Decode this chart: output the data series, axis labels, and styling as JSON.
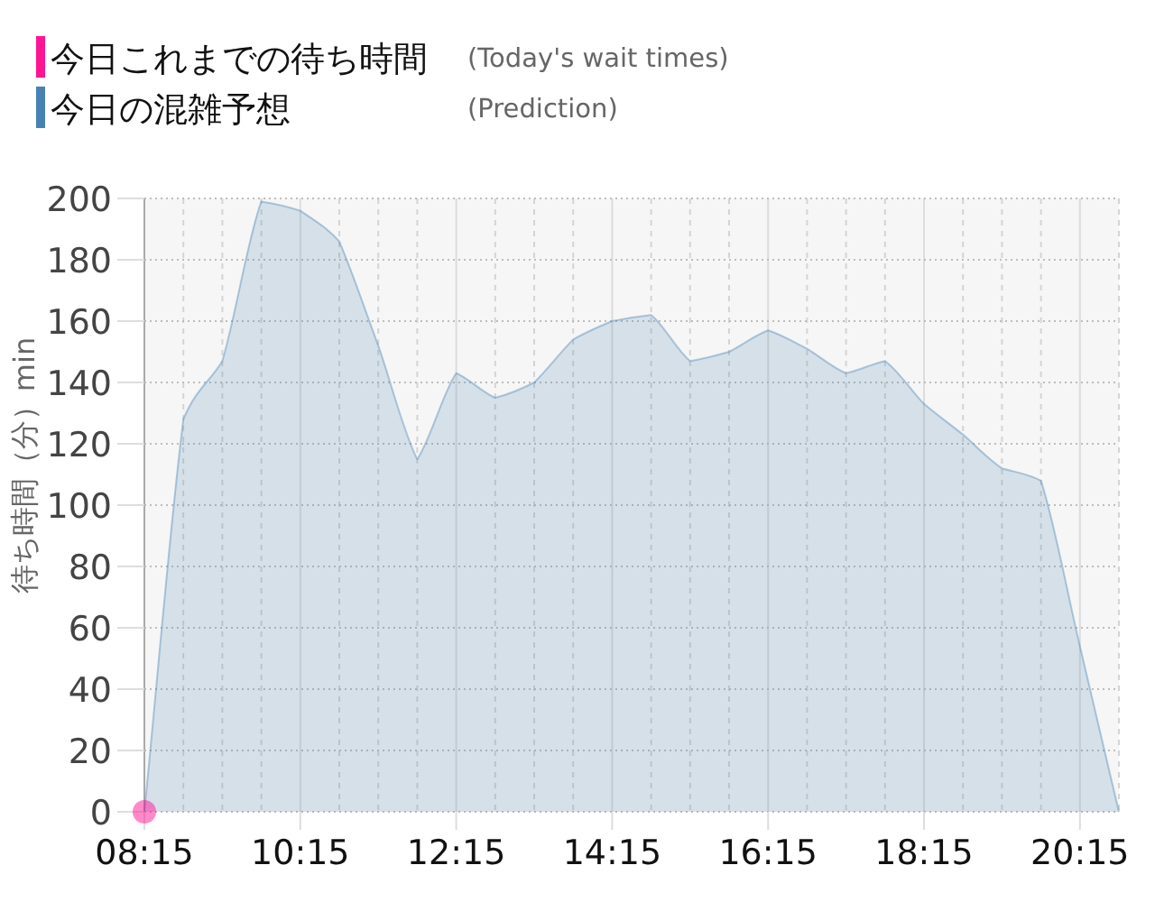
{
  "chart_data": {
    "type": "area",
    "ylabel": "待ち時間（分）min",
    "x": [
      8.25,
      8.75,
      9.25,
      9.75,
      10.25,
      10.75,
      11.25,
      11.75,
      12.25,
      12.75,
      13.25,
      13.75,
      14.25,
      14.75,
      15.25,
      15.75,
      16.25,
      16.75,
      17.25,
      17.75,
      18.25,
      18.75,
      19.25,
      19.75,
      20.25,
      20.75
    ],
    "series": [
      {
        "name": "今日これまでの待ち時間 (Today's wait times)",
        "type": "scatter",
        "marker": "circle",
        "color": "#ff1493",
        "x": [
          8.25
        ],
        "values": [
          0
        ]
      },
      {
        "name": "今日の混雑予想 (Prediction)",
        "color": "#4682b4",
        "values": [
          0,
          128,
          147,
          199,
          196,
          186,
          152,
          115,
          143,
          135,
          140,
          154,
          160,
          162,
          147,
          150,
          157,
          151,
          143,
          147,
          133,
          123,
          112,
          108,
          54,
          0
        ]
      }
    ],
    "xlim": [
      8.25,
      20.75
    ],
    "xticks": [
      {
        "value": 8.25,
        "label": "08:15"
      },
      {
        "value": 8.75,
        "label": null
      },
      {
        "value": 9.25,
        "label": null
      },
      {
        "value": 9.75,
        "label": null
      },
      {
        "value": 10.25,
        "label": "10:15"
      },
      {
        "value": 10.75,
        "label": null
      },
      {
        "value": 11.25,
        "label": null
      },
      {
        "value": 11.75,
        "label": null
      },
      {
        "value": 12.25,
        "label": "12:15"
      },
      {
        "value": 12.75,
        "label": null
      },
      {
        "value": 13.25,
        "label": null
      },
      {
        "value": 13.75,
        "label": null
      },
      {
        "value": 14.25,
        "label": "14:15"
      },
      {
        "value": 14.75,
        "label": null
      },
      {
        "value": 15.25,
        "label": null
      },
      {
        "value": 15.75,
        "label": null
      },
      {
        "value": 16.25,
        "label": "16:15"
      },
      {
        "value": 16.75,
        "label": null
      },
      {
        "value": 17.25,
        "label": null
      },
      {
        "value": 17.75,
        "label": null
      },
      {
        "value": 18.25,
        "label": "18:15"
      },
      {
        "value": 18.75,
        "label": null
      },
      {
        "value": 19.25,
        "label": null
      },
      {
        "value": 19.75,
        "label": null
      },
      {
        "value": 20.25,
        "label": "20:15"
      },
      {
        "value": 20.75,
        "label": null
      }
    ],
    "ylim": [
      0,
      200
    ],
    "yticks": [
      0,
      20,
      40,
      60,
      80,
      100,
      120,
      140,
      160,
      180,
      200
    ],
    "grid": true,
    "legend": "top left"
  }
}
